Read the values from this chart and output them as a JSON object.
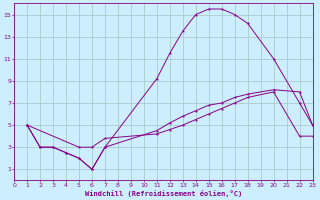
{
  "xlabel": "Windchill (Refroidissement éolien,°C)",
  "background_color": "#cceeff",
  "grid_color": "#aacccc",
  "line_color": "#880088",
  "xlim": [
    0,
    23
  ],
  "ylim": [
    0,
    16
  ],
  "xticks": [
    0,
    1,
    2,
    3,
    4,
    5,
    6,
    7,
    8,
    9,
    10,
    11,
    12,
    13,
    14,
    15,
    16,
    17,
    18,
    19,
    20,
    21,
    22,
    23
  ],
  "yticks": [
    1,
    3,
    5,
    7,
    9,
    11,
    13,
    15
  ],
  "line1_x": [
    1,
    2,
    3,
    4,
    5,
    6,
    7,
    11,
    12,
    13,
    14,
    15,
    16,
    17,
    18,
    20,
    22,
    23
  ],
  "line1_y": [
    5,
    3,
    3,
    2.5,
    2,
    1,
    3,
    9.2,
    11.5,
    13.5,
    15,
    15.5,
    15.5,
    15,
    14.2,
    11,
    7,
    5
  ],
  "line2_x": [
    1,
    2,
    3,
    4,
    5,
    6,
    7,
    11,
    12,
    13,
    14,
    15,
    16,
    17,
    18,
    20,
    22,
    23
  ],
  "line2_y": [
    5,
    3,
    3,
    2.5,
    2,
    1,
    3,
    4.5,
    5.2,
    5.8,
    6.3,
    6.8,
    7.0,
    7.5,
    7.8,
    8.2,
    8.0,
    5.0
  ],
  "line3_x": [
    1,
    5,
    6,
    7,
    11,
    12,
    13,
    14,
    15,
    16,
    17,
    18,
    20,
    22,
    23
  ],
  "line3_y": [
    5,
    3,
    3,
    3.8,
    4.2,
    4.6,
    5.0,
    5.5,
    6.0,
    6.5,
    7.0,
    7.5,
    8.0,
    4.0,
    4.0
  ]
}
